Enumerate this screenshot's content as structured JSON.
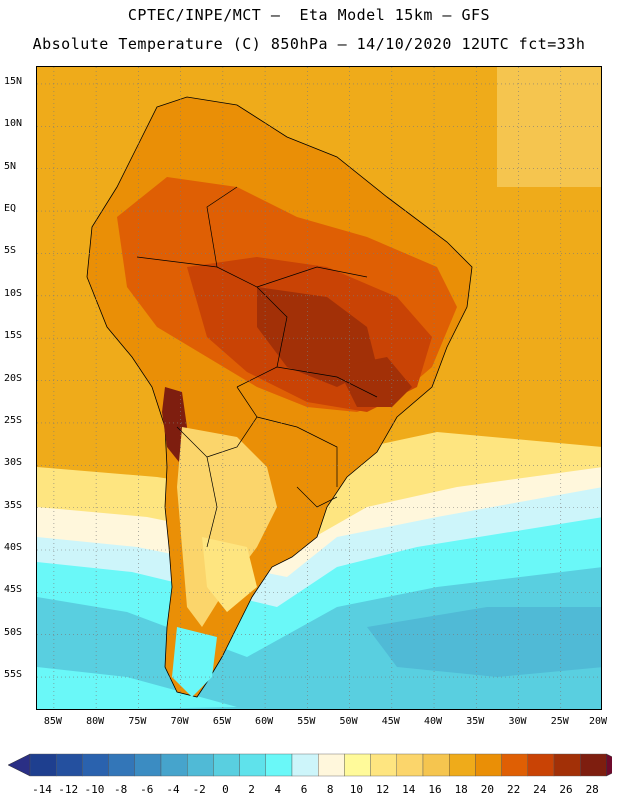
{
  "title": {
    "line1": "CPTEC/INPE/MCT –  Eta Model 15km – GFS",
    "line2": "Absolute Temperature (C) 850hPa – 14/10/2020 12UTC fct=33h"
  },
  "map": {
    "lat_labels": [
      "15N",
      "10N",
      "5N",
      "EQ",
      "5S",
      "10S",
      "15S",
      "20S",
      "25S",
      "30S",
      "35S",
      "40S",
      "45S",
      "50S",
      "55S"
    ],
    "lon_labels": [
      "85W",
      "80W",
      "75W",
      "70W",
      "65W",
      "60W",
      "55W",
      "50W",
      "45W",
      "40W",
      "35W",
      "30W",
      "25W",
      "20W"
    ],
    "lat_values": [
      15,
      10,
      5,
      0,
      -5,
      -10,
      -15,
      -20,
      -25,
      -30,
      -35,
      -40,
      -45,
      -50,
      -55
    ],
    "lon_values": [
      -85,
      -80,
      -75,
      -70,
      -65,
      -60,
      -55,
      -50,
      -45,
      -40,
      -35,
      -30,
      -25,
      -20
    ],
    "zones": [
      {
        "name": "ocean-atlantic-north",
        "temp_c": 18
      },
      {
        "name": "amazon-interior",
        "temp_c": 24
      },
      {
        "name": "central-brazil-hot-core",
        "temp_c": 26
      },
      {
        "name": "chaco-hot-spot",
        "temp_c": 28
      },
      {
        "name": "pampas",
        "temp_c": 14
      },
      {
        "name": "south-atlantic-cold",
        "temp_c": 4
      },
      {
        "name": "southern-ocean",
        "temp_c": 2
      }
    ]
  },
  "colorbar": {
    "labels": [
      "-14",
      "-12",
      "-10",
      "-8",
      "-6",
      "-4",
      "-2",
      "0",
      "2",
      "4",
      "6",
      "8",
      "10",
      "12",
      "14",
      "16",
      "18",
      "20",
      "22",
      "24",
      "26",
      "28"
    ],
    "colors": [
      "#1e3f8f",
      "#24509f",
      "#2a62ae",
      "#3376b8",
      "#3b8cc2",
      "#46a4cc",
      "#50bad6",
      "#59cfe0",
      "#5fe2eb",
      "#6af8f8",
      "#cdf5fa",
      "#fff7dc",
      "#fffa9a",
      "#fee580",
      "#fbd56b",
      "#f5c54f",
      "#efab1a",
      "#ea8f06",
      "#df5f04",
      "#c94305",
      "#a23007",
      "#7e1e0f"
    ],
    "under_color": "#2a2f85",
    "over_color": "#6e0a2c"
  }
}
